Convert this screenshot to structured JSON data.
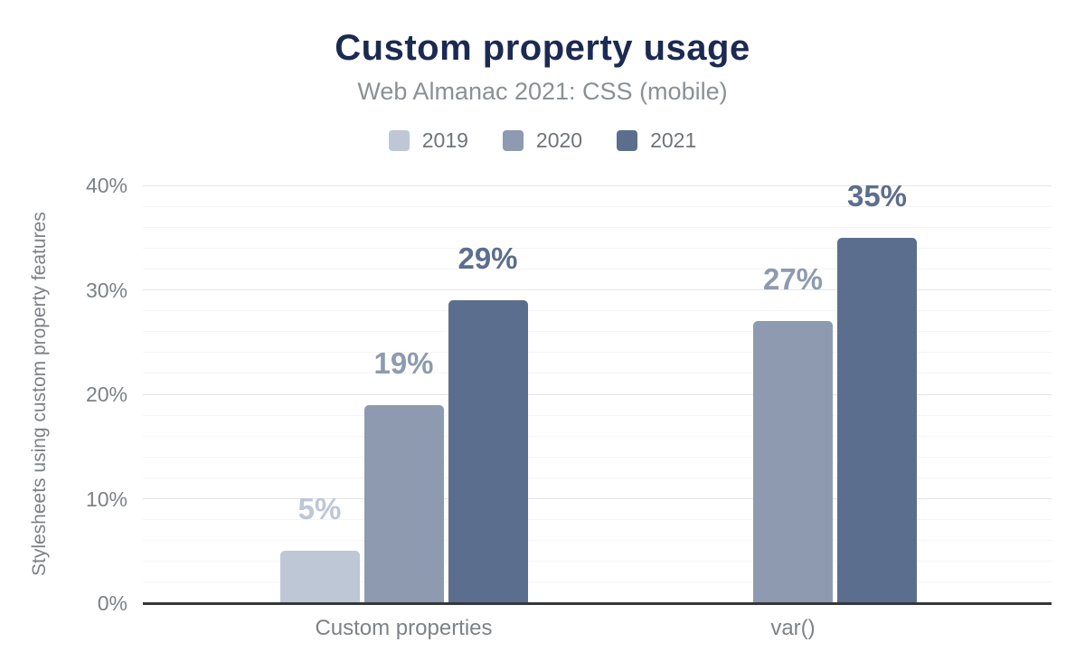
{
  "chart_data": {
    "type": "bar",
    "title": "Custom property usage",
    "subtitle": "Web Almanac 2021: CSS (mobile)",
    "ylabel": "Stylesheets using custom property features",
    "xlabel": "",
    "categories": [
      "Custom properties",
      "var()"
    ],
    "series": [
      {
        "name": "2019",
        "color": "#bec7d6",
        "values": [
          5,
          null
        ]
      },
      {
        "name": "2020",
        "color": "#8d9aaf",
        "values": [
          19,
          27
        ]
      },
      {
        "name": "2021",
        "color": "#5c6e8d",
        "values": [
          29,
          35
        ]
      }
    ],
    "value_label_suffix": "%",
    "ylim": [
      0,
      40
    ],
    "yticks": [
      {
        "value": 0,
        "label": "0%"
      },
      {
        "value": 10,
        "label": "10%"
      },
      {
        "value": 20,
        "label": "20%"
      },
      {
        "value": 30,
        "label": "30%"
      },
      {
        "value": 40,
        "label": "40%"
      }
    ],
    "minor_grid_step": 2,
    "grid": true,
    "legend_position": "top-center",
    "colors": {
      "title": "#1c2a52",
      "subtitle": "#8b9095",
      "axis_text": "#7d8185",
      "legend_text": "#6f7478",
      "category_text": "#7e8286",
      "axis_line": "#35373a",
      "major_grid": "#e5e5e5",
      "minor_grid": "#f5f5f5",
      "background": "#ffffff"
    }
  }
}
